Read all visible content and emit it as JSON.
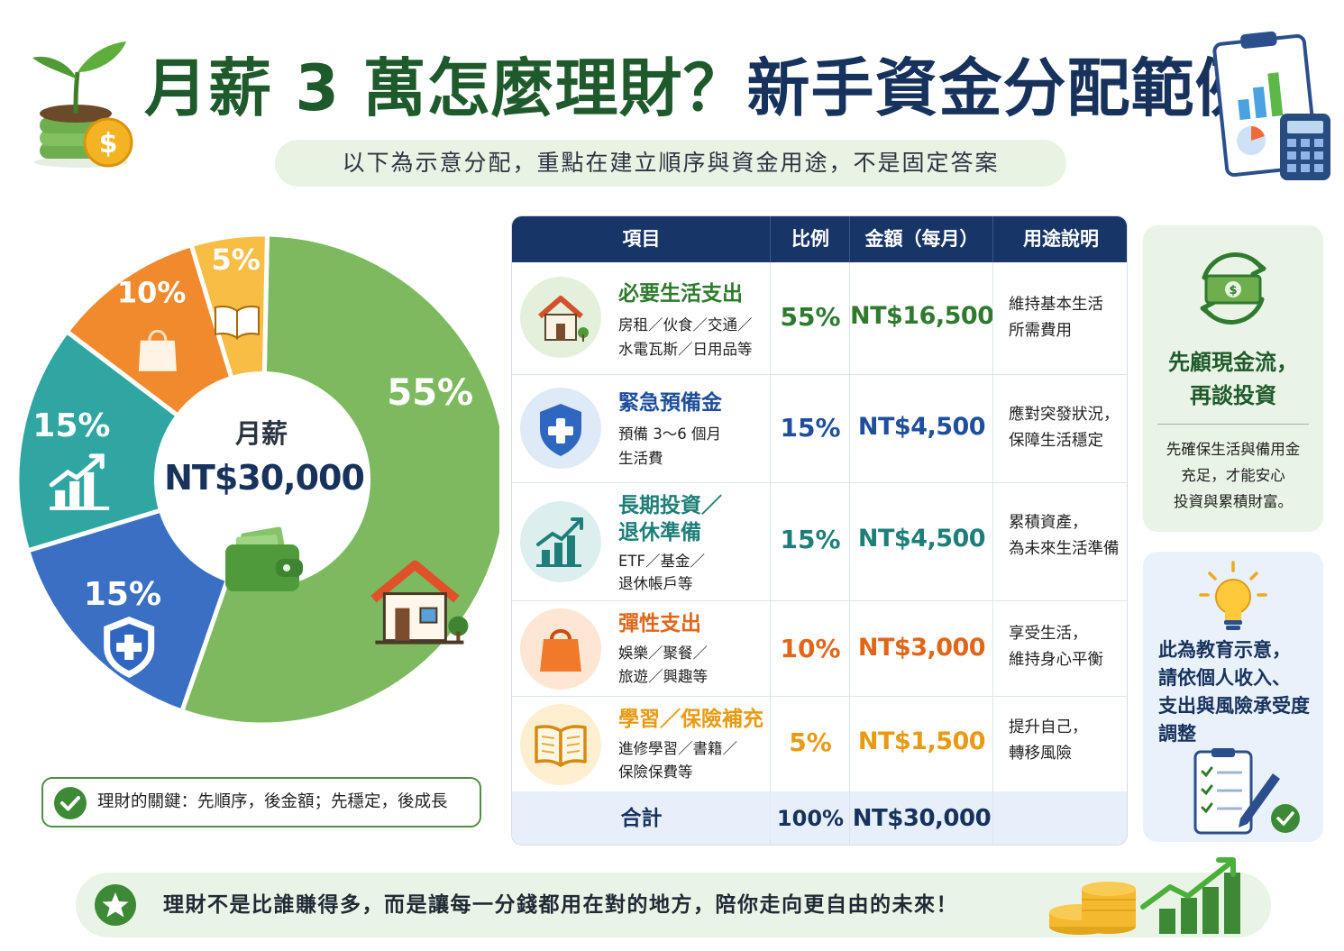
{
  "header": {
    "title_part1": "月薪 3 萬怎麼理財？",
    "title_part2": "新手資金分配範例",
    "subtitle": "以下為示意分配，重點在建立順序與資金用途，不是固定答案"
  },
  "chart_data": {
    "type": "pie",
    "categories": [
      "必要生活支出",
      "緊急預備金",
      "長期投資／退休準備",
      "彈性支出",
      "學習／保險補充"
    ],
    "values": [
      55,
      15,
      15,
      10,
      5
    ],
    "labels": [
      "55%",
      "15%",
      "15%",
      "10%",
      "5%"
    ],
    "colors": [
      "#7db95e",
      "#3a6fc4",
      "#2fa6a1",
      "#f08a2d",
      "#f7bd45"
    ],
    "icons": [
      "house-icon",
      "shield-plus-icon",
      "growth-chart-icon",
      "shopping-bag-icon",
      "book-icon"
    ],
    "center_label": "月薪",
    "center_value": "NT$30,000"
  },
  "key_note": "理財的關鍵：先順序，後金額；先穩定，後成長",
  "table": {
    "headers": [
      "項目",
      "比例",
      "金額（每月）",
      "用途說明"
    ],
    "rows": [
      {
        "title": "必要生活支出",
        "desc": [
          "房租／伙食／交通／",
          "水電瓦斯／日用品等"
        ],
        "pct": "55%",
        "amount": "NT$16,500",
        "use": [
          "維持基本生活",
          "所需費用"
        ],
        "color": "#2f7a2e",
        "icon": "house-icon"
      },
      {
        "title": "緊急預備金",
        "desc": [
          "預備 3～6 個月",
          "生活費"
        ],
        "pct": "15%",
        "amount": "NT$4,500",
        "use": [
          "應對突發狀況，",
          "保障生活穩定"
        ],
        "color": "#1f4f9c",
        "icon": "shield-plus-icon"
      },
      {
        "title": "長期投資／退休準備",
        "title_lines": [
          "長期投資／",
          "退休準備"
        ],
        "desc": [
          "ETF／基金／",
          "退休帳戶等"
        ],
        "pct": "15%",
        "amount": "NT$4,500",
        "use": [
          "累積資產，",
          "為未來生活準備"
        ],
        "color": "#1e7f79",
        "icon": "growth-chart-icon"
      },
      {
        "title": "彈性支出",
        "desc": [
          "娛樂／聚餐／",
          "旅遊／興趣等"
        ],
        "pct": "10%",
        "amount": "NT$3,000",
        "use": [
          "享受生活，",
          "維持身心平衡"
        ],
        "color": "#e0661a",
        "icon": "shopping-bag-icon"
      },
      {
        "title": "學習／保險補充",
        "desc": [
          "進修學習／書籍／",
          "保險保費等"
        ],
        "pct": "5%",
        "amount": "NT$1,500",
        "use": [
          "提升自己，",
          "轉移風險"
        ],
        "color": "#e89a12",
        "icon": "book-icon"
      }
    ],
    "total": {
      "label": "合計",
      "pct": "100%",
      "amount": "NT$30,000"
    }
  },
  "side_cash": {
    "head": [
      "先顧現金流，",
      "再談投資"
    ],
    "body": [
      "先確保生活與備用金",
      "充足，才能安心",
      "投資與累積財富。"
    ],
    "icon": "cash-cycle-icon"
  },
  "side_edu": {
    "body": [
      "此為教育示意，",
      "請依個人收入、",
      "支出與風險承受度",
      "調整"
    ],
    "icons": [
      "lightbulb-icon",
      "checklist-clipboard-icon"
    ]
  },
  "banner": {
    "text": "理財不是比誰賺得多，而是讓每一分錢都用在對的地方，陪你走向更自由的未來！",
    "icons": [
      "star-icon",
      "coins-icon",
      "growth-bars-icon"
    ]
  },
  "decor": {
    "left_icon": "sprout-coins-icon",
    "right_icon": "report-calculator-icon"
  }
}
